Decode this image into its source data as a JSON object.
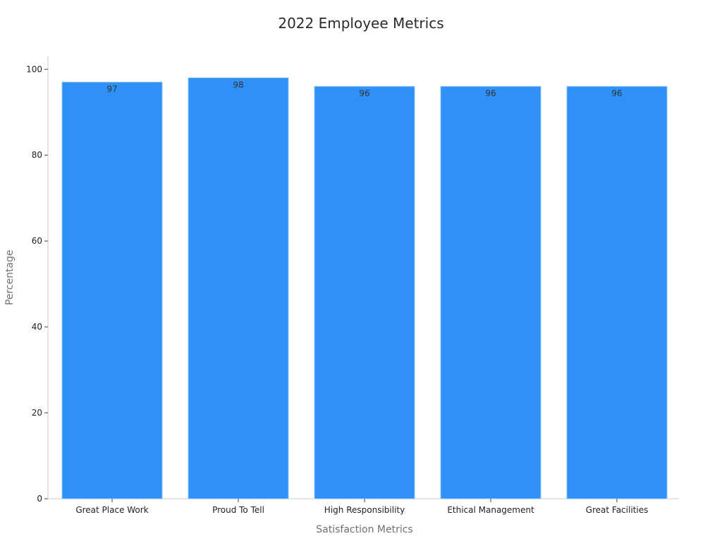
{
  "chart_data": {
    "type": "bar",
    "title": "2022 Employee Metrics",
    "xlabel": "Satisfaction Metrics",
    "ylabel": "Percentage",
    "categories": [
      "Great Place Work",
      "Proud To Tell",
      "High Responsibility",
      "Ethical Management",
      "Great Facilities"
    ],
    "values": [
      97,
      98,
      96,
      96,
      96
    ],
    "ylim": [
      0,
      103
    ],
    "yticks": [
      0,
      20,
      40,
      60,
      80,
      100
    ],
    "bar_color": "#2f91f7",
    "grid": false,
    "legend": "none"
  }
}
